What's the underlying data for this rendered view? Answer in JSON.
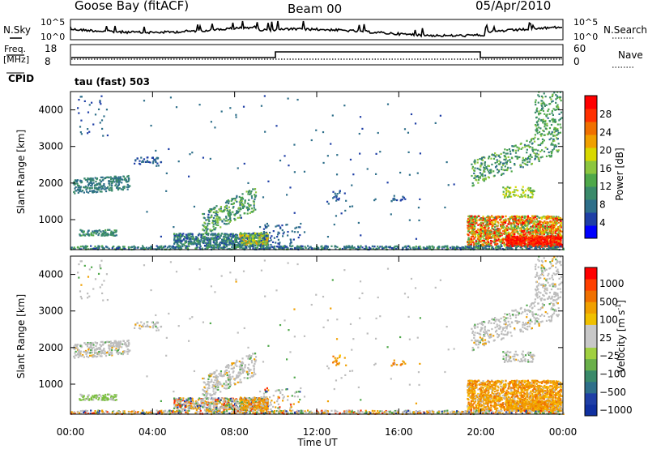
{
  "header": {
    "station": "Goose Bay (fitACF)",
    "beam": "Beam 00",
    "date": "05/Apr/2010"
  },
  "summary_panels": {
    "nsky_label": "N.Sky",
    "nsky_ticks": [
      "10^5",
      "10^0"
    ],
    "nsearch_label": "N.Search",
    "nsearch_ticks": [
      "10^5",
      "10^0"
    ],
    "freq_label_1": "Freq.",
    "freq_label_2": "[MHz]",
    "freq_ticks": [
      "18",
      "8"
    ],
    "nave_label": "Nave",
    "nave_ticks": [
      "60",
      "0"
    ],
    "cpid_label": "CPID",
    "cpid_text": "tau (fast) 503"
  },
  "chart_data": [
    {
      "type": "heatmap",
      "name": "power",
      "ylabel": "Slant Range [km]",
      "yticks": [
        "4000",
        "3000",
        "2000",
        "1000"
      ],
      "ylim": [
        180,
        4500
      ],
      "xlim": [
        0,
        24
      ],
      "colorbar": {
        "label": "Power [dB]",
        "tick_labels": [
          "28",
          "24",
          "20",
          "16",
          "12",
          "8",
          "4"
        ],
        "range": [
          0,
          30
        ],
        "colors": [
          "#0000ff",
          "#1f3fa6",
          "#2e6f8a",
          "#3a8a6a",
          "#4fa84a",
          "#8cc63f",
          "#d8d800",
          "#f0a000",
          "#f07000",
          "#ff3000",
          "#ff0000"
        ]
      }
    },
    {
      "type": "heatmap",
      "name": "velocity",
      "ylabel": "Slant Range [km]",
      "yticks": [
        "4000",
        "3000",
        "2000",
        "1000"
      ],
      "ylim": [
        180,
        4500
      ],
      "xlim": [
        0,
        24
      ],
      "xticks": [
        "00:00",
        "04:00",
        "08:00",
        "12:00",
        "16:00",
        "20:00",
        "00:00"
      ],
      "xlabel": "Time UT",
      "colorbar": {
        "label": "Velocity [m s^-1]",
        "tick_labels": [
          "1000",
          "500",
          "100",
          "25",
          "−25",
          "−100",
          "−500",
          "−1000"
        ],
        "colors": [
          "#1030a0",
          "#1f3fa6",
          "#2e6f8a",
          "#3a8a6a",
          "#6ab04a",
          "#a0d040",
          "#c8c8c8",
          "#c8c8c8",
          "#f0c000",
          "#f0a000",
          "#f07000",
          "#ff4000",
          "#ff0000"
        ]
      }
    }
  ],
  "colors": {
    "frame": "#000000",
    "background": "#ffffff",
    "ground_scatter": "#b0b0b0"
  }
}
